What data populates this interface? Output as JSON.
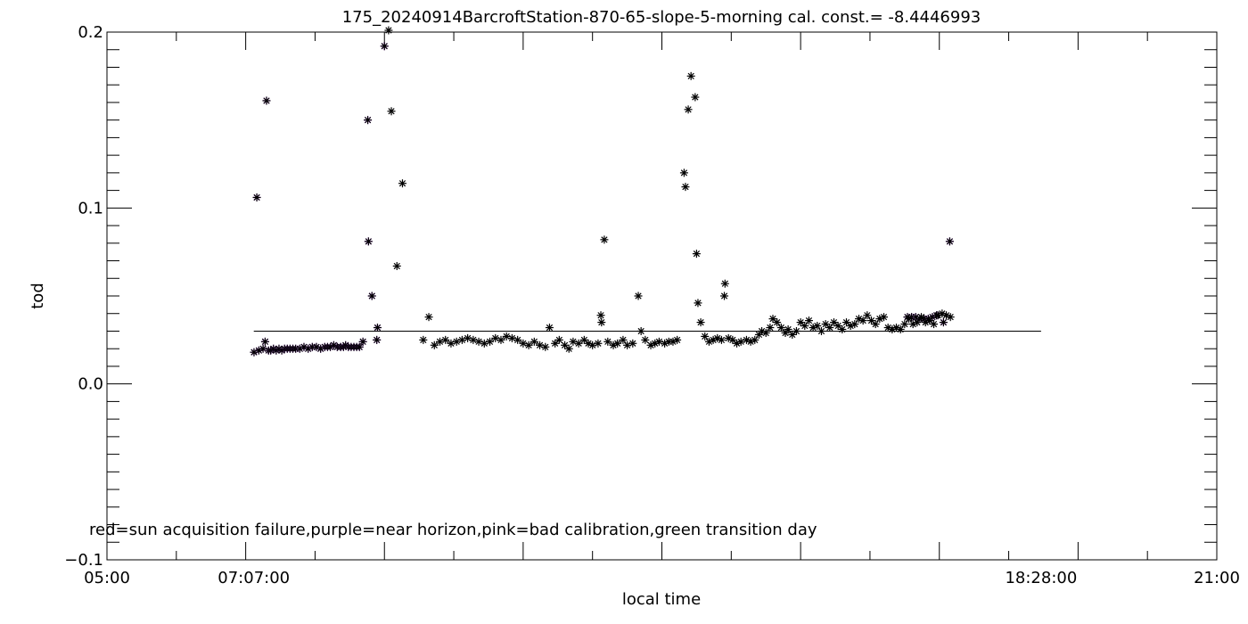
{
  "chart_data": {
    "type": "scatter",
    "title": "175_20240914BarcroftStation-870-65-slope-5-morning cal. const.= -8.4446993",
    "xlabel": "local time",
    "ylabel": "tod",
    "x_unit": "hours (local time)",
    "xlim": [
      5.0,
      21.0
    ],
    "ylim": [
      -0.1,
      0.2
    ],
    "x_tick_labels": [
      {
        "x": 5.0,
        "label": "05:00"
      },
      {
        "x": 7.1167,
        "label": "07:07:00"
      },
      {
        "x": 18.4667,
        "label": "18:28:00"
      },
      {
        "x": 21.0,
        "label": "21:00"
      }
    ],
    "y_tick_labels": [
      {
        "y": -0.1,
        "label": "-0.1"
      },
      {
        "y": 0.0,
        "label": "0.0"
      },
      {
        "y": 0.1,
        "label": "0.1"
      },
      {
        "y": 0.2,
        "label": "0.2"
      }
    ],
    "grid": false,
    "annotation": "red=sun acquisition failure,purple=near horizon,pink=bad calibration,green transition day",
    "reference_line": {
      "x": [
        7.1167,
        18.4667
      ],
      "y": 0.03
    },
    "colors": {
      "default": "#000000",
      "near_horizon": "#9b30d9"
    },
    "series": [
      {
        "flag": "near_horizon",
        "color": "#9b30d9",
        "points": [
          [
            7.12,
            0.018
          ],
          [
            7.16,
            0.106
          ],
          [
            7.19,
            0.019
          ],
          [
            7.25,
            0.02
          ],
          [
            7.28,
            0.024
          ],
          [
            7.3,
            0.161
          ],
          [
            7.33,
            0.019
          ],
          [
            7.36,
            0.019
          ],
          [
            7.4,
            0.02
          ],
          [
            7.44,
            0.019
          ],
          [
            7.48,
            0.02
          ],
          [
            7.52,
            0.019
          ],
          [
            7.56,
            0.02
          ],
          [
            7.6,
            0.02
          ],
          [
            7.64,
            0.02
          ],
          [
            7.68,
            0.02
          ],
          [
            7.72,
            0.02
          ],
          [
            7.78,
            0.02
          ],
          [
            7.84,
            0.021
          ],
          [
            7.9,
            0.02
          ],
          [
            7.96,
            0.021
          ],
          [
            8.02,
            0.021
          ],
          [
            8.08,
            0.02
          ],
          [
            8.14,
            0.021
          ],
          [
            8.18,
            0.021
          ],
          [
            8.22,
            0.021
          ],
          [
            8.27,
            0.022
          ],
          [
            8.32,
            0.021
          ],
          [
            8.37,
            0.021
          ],
          [
            8.41,
            0.021
          ],
          [
            8.44,
            0.022
          ],
          [
            8.48,
            0.021
          ],
          [
            8.52,
            0.021
          ],
          [
            8.56,
            0.021
          ],
          [
            8.6,
            0.021
          ],
          [
            8.64,
            0.021
          ],
          [
            8.69,
            0.024
          ],
          [
            8.76,
            0.15
          ],
          [
            8.77,
            0.081
          ],
          [
            8.82,
            0.05
          ],
          [
            8.89,
            0.025
          ],
          [
            8.9,
            0.032
          ],
          [
            9.0,
            0.192
          ],
          [
            16.54,
            0.038
          ],
          [
            16.6,
            0.038
          ],
          [
            16.66,
            0.038
          ],
          [
            16.72,
            0.037
          ],
          [
            16.78,
            0.037
          ],
          [
            16.84,
            0.037
          ],
          [
            16.9,
            0.038
          ],
          [
            16.96,
            0.039
          ],
          [
            17.06,
            0.035
          ],
          [
            17.15,
            0.081
          ]
        ]
      },
      {
        "flag": "normal",
        "color": "#000000",
        "points": [
          [
            9.06,
            0.201
          ],
          [
            9.1,
            0.155
          ],
          [
            9.18,
            0.067
          ],
          [
            9.26,
            0.114
          ],
          [
            9.56,
            0.025
          ],
          [
            9.64,
            0.038
          ],
          [
            9.72,
            0.022
          ],
          [
            9.8,
            0.024
          ],
          [
            9.88,
            0.025
          ],
          [
            9.96,
            0.023
          ],
          [
            10.04,
            0.024
          ],
          [
            10.12,
            0.025
          ],
          [
            10.2,
            0.026
          ],
          [
            10.28,
            0.025
          ],
          [
            10.36,
            0.024
          ],
          [
            10.44,
            0.023
          ],
          [
            10.52,
            0.024
          ],
          [
            10.6,
            0.026
          ],
          [
            10.68,
            0.025
          ],
          [
            10.76,
            0.027
          ],
          [
            10.84,
            0.026
          ],
          [
            10.92,
            0.025
          ],
          [
            11.0,
            0.023
          ],
          [
            11.08,
            0.022
          ],
          [
            11.16,
            0.024
          ],
          [
            11.24,
            0.022
          ],
          [
            11.32,
            0.021
          ],
          [
            11.38,
            0.032
          ],
          [
            11.46,
            0.023
          ],
          [
            11.52,
            0.025
          ],
          [
            11.6,
            0.022
          ],
          [
            11.66,
            0.02
          ],
          [
            11.72,
            0.024
          ],
          [
            11.8,
            0.023
          ],
          [
            11.88,
            0.025
          ],
          [
            11.94,
            0.023
          ],
          [
            12.0,
            0.022
          ],
          [
            12.08,
            0.023
          ],
          [
            12.12,
            0.039
          ],
          [
            12.13,
            0.035
          ],
          [
            12.17,
            0.082
          ],
          [
            12.22,
            0.024
          ],
          [
            12.3,
            0.022
          ],
          [
            12.36,
            0.023
          ],
          [
            12.44,
            0.025
          ],
          [
            12.5,
            0.022
          ],
          [
            12.58,
            0.023
          ],
          [
            12.66,
            0.05
          ],
          [
            12.7,
            0.03
          ],
          [
            12.76,
            0.025
          ],
          [
            12.84,
            0.022
          ],
          [
            12.9,
            0.023
          ],
          [
            12.96,
            0.024
          ],
          [
            13.04,
            0.023
          ],
          [
            13.1,
            0.024
          ],
          [
            13.16,
            0.024
          ],
          [
            13.22,
            0.025
          ],
          [
            13.32,
            0.12
          ],
          [
            13.34,
            0.112
          ],
          [
            13.38,
            0.156
          ],
          [
            13.42,
            0.175
          ],
          [
            13.48,
            0.163
          ],
          [
            13.5,
            0.074
          ],
          [
            13.52,
            0.046
          ],
          [
            13.56,
            0.035
          ],
          [
            13.62,
            0.027
          ],
          [
            13.68,
            0.024
          ],
          [
            13.74,
            0.025
          ],
          [
            13.8,
            0.026
          ],
          [
            13.86,
            0.025
          ],
          [
            13.9,
            0.05
          ],
          [
            13.91,
            0.057
          ],
          [
            13.96,
            0.026
          ],
          [
            14.02,
            0.025
          ],
          [
            14.08,
            0.023
          ],
          [
            14.14,
            0.024
          ],
          [
            14.22,
            0.025
          ],
          [
            14.28,
            0.024
          ],
          [
            14.34,
            0.025
          ],
          [
            14.4,
            0.028
          ],
          [
            14.44,
            0.03
          ],
          [
            14.5,
            0.029
          ],
          [
            14.56,
            0.032
          ],
          [
            14.6,
            0.037
          ],
          [
            14.66,
            0.035
          ],
          [
            14.72,
            0.032
          ],
          [
            14.78,
            0.029
          ],
          [
            14.82,
            0.031
          ],
          [
            14.88,
            0.028
          ],
          [
            14.94,
            0.03
          ],
          [
            15.0,
            0.035
          ],
          [
            15.06,
            0.033
          ],
          [
            15.12,
            0.036
          ],
          [
            15.18,
            0.032
          ],
          [
            15.24,
            0.033
          ],
          [
            15.3,
            0.03
          ],
          [
            15.36,
            0.034
          ],
          [
            15.42,
            0.032
          ],
          [
            15.48,
            0.035
          ],
          [
            15.54,
            0.033
          ],
          [
            15.6,
            0.031
          ],
          [
            15.66,
            0.035
          ],
          [
            15.72,
            0.033
          ],
          [
            15.78,
            0.034
          ],
          [
            15.84,
            0.037
          ],
          [
            15.9,
            0.036
          ],
          [
            15.96,
            0.039
          ],
          [
            16.02,
            0.036
          ],
          [
            16.08,
            0.034
          ],
          [
            16.14,
            0.037
          ],
          [
            16.2,
            0.038
          ],
          [
            16.26,
            0.032
          ],
          [
            16.32,
            0.031
          ],
          [
            16.38,
            0.032
          ],
          [
            16.44,
            0.031
          ],
          [
            16.5,
            0.034
          ],
          [
            16.56,
            0.037
          ],
          [
            16.62,
            0.034
          ],
          [
            16.68,
            0.035
          ],
          [
            16.74,
            0.038
          ],
          [
            16.8,
            0.035
          ],
          [
            16.86,
            0.036
          ],
          [
            16.92,
            0.034
          ],
          [
            16.98,
            0.039
          ],
          [
            17.04,
            0.04
          ],
          [
            17.1,
            0.039
          ],
          [
            17.16,
            0.038
          ]
        ]
      }
    ]
  }
}
